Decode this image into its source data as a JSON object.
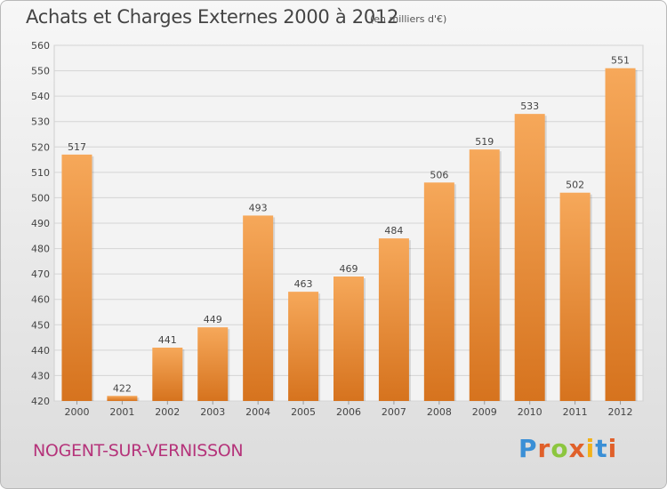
{
  "header": {
    "title": "Achats et Charges Externes 2000 à 2012",
    "units": "(en milliers d'€)"
  },
  "footer": {
    "town": "NOGENT-SUR-VERNISSON",
    "logo_text": "Proxiti"
  },
  "colors": {
    "bar_top": "#f6a85a",
    "bar_bottom": "#d6731e",
    "town": "#b5337a",
    "logo": [
      "#3a8fd6",
      "#e0602a",
      "#8cc63f",
      "#e0602a",
      "#f2b21a",
      "#3a8fd6",
      "#e0602a"
    ]
  },
  "chart_data": {
    "type": "bar",
    "categories": [
      "2000",
      "2001",
      "2002",
      "2003",
      "2004",
      "2005",
      "2006",
      "2007",
      "2008",
      "2009",
      "2010",
      "2011",
      "2012"
    ],
    "values": [
      517,
      422,
      441,
      449,
      493,
      463,
      469,
      484,
      506,
      519,
      533,
      502,
      551
    ],
    "ylim": [
      420,
      560
    ],
    "yticks": [
      420,
      430,
      440,
      450,
      460,
      470,
      480,
      490,
      500,
      510,
      520,
      530,
      540,
      550,
      560
    ],
    "grid": true,
    "title": "Achats et Charges Externes 2000 à 2012",
    "xlabel": "",
    "ylabel": ""
  }
}
